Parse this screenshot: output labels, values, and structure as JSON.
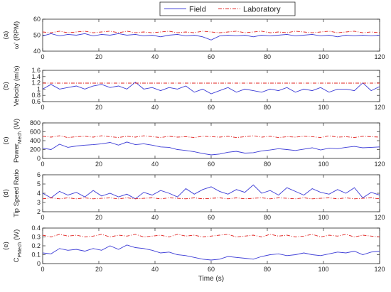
{
  "colors": {
    "field": "#3b3bd6",
    "laboratory": "#e0201e",
    "axis": "#262626",
    "background": "#ffffff"
  },
  "legend": {
    "entries": [
      "Field",
      "Laboratory"
    ],
    "placement": "top-center"
  },
  "chart_data": [
    {
      "type": "line",
      "panel_label": "(a)",
      "ylabel": "ω' (RPM)",
      "xlabel": "",
      "xlim": [
        0,
        120
      ],
      "ylim": [
        40,
        60
      ],
      "xticks": [
        0,
        20,
        40,
        60,
        80,
        100,
        120
      ],
      "yticks": [
        40,
        50,
        60
      ],
      "x": [
        0,
        3,
        6,
        9,
        12,
        15,
        18,
        21,
        24,
        27,
        30,
        33,
        36,
        39,
        42,
        45,
        48,
        51,
        54,
        57,
        60,
        63,
        66,
        69,
        72,
        75,
        78,
        81,
        84,
        87,
        90,
        93,
        96,
        99,
        102,
        105,
        108,
        111,
        114,
        117,
        120
      ],
      "series": [
        {
          "name": "Field",
          "style": "solid",
          "values": [
            49.5,
            51,
            49.5,
            50.5,
            50,
            51,
            49.5,
            50.5,
            50,
            51,
            50,
            50.5,
            49.5,
            50,
            49,
            50,
            50.5,
            49.5,
            50,
            49,
            47,
            49.5,
            50,
            49.5,
            50,
            49,
            50,
            49.5,
            50,
            50.5,
            49.5,
            50,
            50.5,
            49.5,
            50,
            49,
            50,
            49.5,
            50,
            49.5,
            50
          ]
        },
        {
          "name": "Laboratory",
          "style": "dashdot",
          "values": [
            52,
            51.5,
            52.5,
            51.5,
            52,
            52.5,
            51.5,
            52,
            52.5,
            51.5,
            52.5,
            51.5,
            52,
            51.5,
            52,
            52.5,
            51.5,
            52,
            51.5,
            52.5,
            52,
            51.5,
            52,
            52.5,
            51.5,
            52,
            52.5,
            51.5,
            52,
            51.5,
            52.5,
            52,
            51.5,
            52,
            52.5,
            51.5,
            52,
            52.5,
            51.5,
            52,
            51.5
          ]
        }
      ]
    },
    {
      "type": "line",
      "panel_label": "(b)",
      "ylabel": "Velocity (m/s)",
      "xlabel": "",
      "xlim": [
        0,
        120
      ],
      "ylim": [
        0.6,
        1.6
      ],
      "xticks": [
        0,
        20,
        40,
        60,
        80,
        100,
        120
      ],
      "yticks": [
        0.6,
        0.8,
        1,
        1.2,
        1.4,
        1.6
      ],
      "x": [
        0,
        3,
        6,
        9,
        12,
        15,
        18,
        21,
        24,
        27,
        30,
        33,
        36,
        39,
        42,
        45,
        48,
        51,
        54,
        57,
        60,
        63,
        66,
        69,
        72,
        75,
        78,
        81,
        84,
        87,
        90,
        93,
        96,
        99,
        102,
        105,
        108,
        111,
        114,
        117,
        120
      ],
      "series": [
        {
          "name": "Field",
          "style": "solid",
          "values": [
            1.0,
            1.15,
            1.0,
            1.05,
            1.1,
            1.0,
            1.1,
            1.15,
            1.05,
            1.1,
            1.0,
            1.22,
            1.0,
            1.05,
            0.95,
            1.05,
            1.0,
            1.1,
            0.9,
            1.0,
            0.85,
            0.95,
            1.05,
            0.9,
            1.0,
            0.95,
            0.9,
            1.0,
            0.95,
            1.05,
            0.9,
            1.0,
            0.95,
            1.05,
            0.9,
            1.0,
            1.0,
            0.95,
            1.2,
            0.95,
            1.08
          ]
        },
        {
          "name": "Laboratory",
          "style": "dashdot",
          "values": [
            1.19,
            1.19,
            1.19,
            1.19,
            1.19,
            1.19,
            1.19,
            1.19,
            1.19,
            1.19,
            1.19,
            1.19,
            1.19,
            1.19,
            1.19,
            1.19,
            1.19,
            1.19,
            1.19,
            1.19,
            1.19,
            1.19,
            1.19,
            1.19,
            1.19,
            1.19,
            1.19,
            1.19,
            1.19,
            1.19,
            1.19,
            1.19,
            1.19,
            1.19,
            1.19,
            1.19,
            1.19,
            1.19,
            1.19,
            1.19,
            1.19
          ]
        }
      ]
    },
    {
      "type": "line",
      "panel_label": "(c)",
      "ylabel": "Power",
      "ylabel_sub": "Mech",
      "ylabel_unit": " (W)",
      "xlabel": "",
      "xlim": [
        0,
        120
      ],
      "ylim": [
        0,
        800
      ],
      "xticks": [
        0,
        20,
        40,
        60,
        80,
        100,
        120
      ],
      "yticks": [
        0,
        200,
        400,
        600,
        800
      ],
      "x": [
        0,
        3,
        6,
        9,
        12,
        15,
        18,
        21,
        24,
        27,
        30,
        33,
        36,
        39,
        42,
        45,
        48,
        51,
        54,
        57,
        60,
        63,
        66,
        69,
        72,
        75,
        78,
        81,
        84,
        87,
        90,
        93,
        96,
        99,
        102,
        105,
        108,
        111,
        114,
        117,
        120
      ],
      "series": [
        {
          "name": "Field",
          "style": "solid",
          "values": [
            230,
            200,
            320,
            250,
            280,
            300,
            310,
            330,
            360,
            300,
            370,
            310,
            330,
            300,
            260,
            250,
            200,
            180,
            150,
            110,
            80,
            100,
            140,
            160,
            120,
            130,
            170,
            190,
            220,
            200,
            180,
            210,
            240,
            190,
            230,
            220,
            250,
            270,
            240,
            250,
            260
          ]
        },
        {
          "name": "Laboratory",
          "style": "dashdot",
          "values": [
            500,
            480,
            510,
            470,
            490,
            500,
            480,
            510,
            490,
            470,
            500,
            480,
            510,
            490,
            470,
            500,
            480,
            490,
            470,
            500,
            490,
            480,
            500,
            470,
            490,
            510,
            480,
            500,
            470,
            490,
            480,
            500,
            490,
            470,
            510,
            480,
            490,
            470,
            500,
            490,
            480
          ]
        }
      ]
    },
    {
      "type": "line",
      "panel_label": "(d)",
      "ylabel": "Tip Speed Ratio",
      "xlabel": "",
      "xlim": [
        0,
        120
      ],
      "ylim": [
        2,
        6
      ],
      "xticks": [
        0,
        20,
        40,
        60,
        80,
        100,
        120
      ],
      "yticks": [
        2,
        3,
        4,
        5,
        6
      ],
      "x": [
        0,
        3,
        6,
        9,
        12,
        15,
        18,
        21,
        24,
        27,
        30,
        33,
        36,
        39,
        42,
        45,
        48,
        51,
        54,
        57,
        60,
        63,
        66,
        69,
        72,
        75,
        78,
        81,
        84,
        87,
        90,
        93,
        96,
        99,
        102,
        105,
        108,
        111,
        114,
        117,
        120
      ],
      "series": [
        {
          "name": "Field",
          "style": "solid",
          "values": [
            4.0,
            3.5,
            4.2,
            3.8,
            4.1,
            3.6,
            4.3,
            3.7,
            4.0,
            3.6,
            3.9,
            3.4,
            4.1,
            3.8,
            4.3,
            4.0,
            3.6,
            4.5,
            3.9,
            4.4,
            4.7,
            4.2,
            3.9,
            4.4,
            4.1,
            4.9,
            4.0,
            4.3,
            3.8,
            4.6,
            4.2,
            3.8,
            4.5,
            4.1,
            3.9,
            4.4,
            4.0,
            4.6,
            3.5,
            4.1,
            3.8
          ]
        },
        {
          "name": "Laboratory",
          "style": "dashdot",
          "values": [
            3.4,
            3.5,
            3.4,
            3.5,
            3.4,
            3.5,
            3.4,
            3.45,
            3.5,
            3.4,
            3.5,
            3.4,
            3.45,
            3.5,
            3.4,
            3.5,
            3.45,
            3.4,
            3.5,
            3.4,
            3.45,
            3.5,
            3.4,
            3.5,
            3.4,
            3.45,
            3.5,
            3.4,
            3.5,
            3.45,
            3.4,
            3.5,
            3.4,
            3.45,
            3.5,
            3.4,
            3.5,
            3.4,
            3.45,
            3.5,
            3.4
          ]
        }
      ]
    },
    {
      "type": "line",
      "panel_label": "(e)",
      "ylabel": "C",
      "ylabel_sub": "PMech",
      "ylabel_unit": " (W)",
      "xlabel": "Time (s)",
      "xlim": [
        0,
        120
      ],
      "ylim": [
        0,
        0.4
      ],
      "xticks": [
        0,
        20,
        40,
        60,
        80,
        100,
        120
      ],
      "yticks": [
        0,
        0.1,
        0.2,
        0.3,
        0.4
      ],
      "x": [
        0,
        3,
        6,
        9,
        12,
        15,
        18,
        21,
        24,
        27,
        30,
        33,
        36,
        39,
        42,
        45,
        48,
        51,
        54,
        57,
        60,
        63,
        66,
        69,
        72,
        75,
        78,
        81,
        84,
        87,
        90,
        93,
        96,
        99,
        102,
        105,
        108,
        111,
        114,
        117,
        120
      ],
      "series": [
        {
          "name": "Field",
          "style": "solid",
          "values": [
            0.12,
            0.11,
            0.17,
            0.15,
            0.16,
            0.14,
            0.17,
            0.15,
            0.2,
            0.16,
            0.21,
            0.18,
            0.17,
            0.15,
            0.12,
            0.13,
            0.1,
            0.09,
            0.07,
            0.05,
            0.04,
            0.05,
            0.08,
            0.07,
            0.06,
            0.05,
            0.08,
            0.1,
            0.11,
            0.09,
            0.1,
            0.12,
            0.1,
            0.09,
            0.11,
            0.13,
            0.12,
            0.14,
            0.1,
            0.13,
            0.14
          ]
        },
        {
          "name": "Laboratory",
          "style": "dashdot",
          "values": [
            0.32,
            0.3,
            0.33,
            0.31,
            0.32,
            0.3,
            0.31,
            0.33,
            0.3,
            0.32,
            0.31,
            0.33,
            0.3,
            0.31,
            0.32,
            0.3,
            0.33,
            0.31,
            0.32,
            0.3,
            0.31,
            0.32,
            0.33,
            0.3,
            0.31,
            0.32,
            0.3,
            0.33,
            0.31,
            0.32,
            0.3,
            0.31,
            0.33,
            0.3,
            0.32,
            0.31,
            0.33,
            0.3,
            0.32,
            0.31,
            0.3
          ]
        }
      ]
    }
  ]
}
